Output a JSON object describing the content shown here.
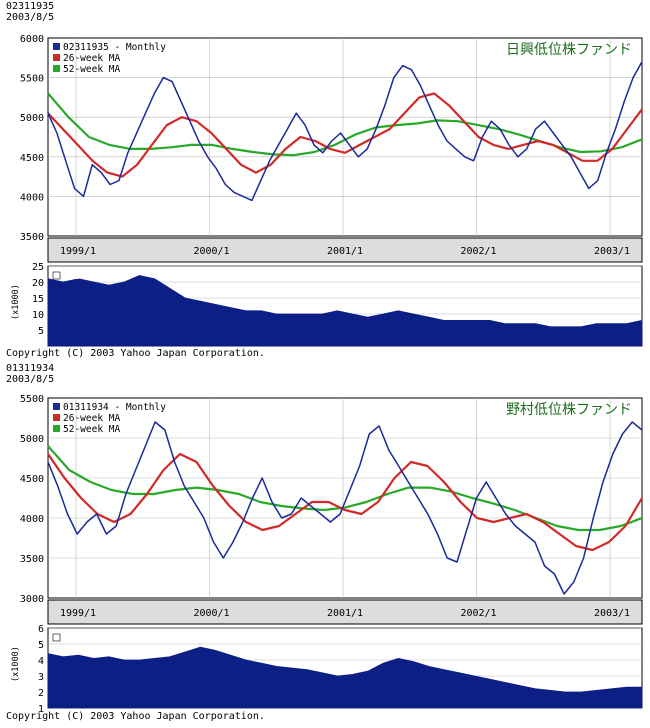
{
  "chart_data": [
    {
      "type": "line",
      "header": {
        "code": "02311935",
        "date": "2003/8/5"
      },
      "title": "日興低位株ファンド",
      "legend": [
        {
          "label": "02311935 - Monthly",
          "color": "#1a2a9a"
        },
        {
          "label": "26-week MA",
          "color": "#d12a2a"
        },
        {
          "label": "52-week MA",
          "color": "#2aa82a"
        }
      ],
      "y_ticks": [
        "6000",
        "5500",
        "5000",
        "4500",
        "4000",
        "3500"
      ],
      "ylim": [
        3500,
        6000
      ],
      "x_ticks": [
        "1999/1",
        "2000/1",
        "2001/1",
        "2002/1",
        "2003/1"
      ],
      "price": [
        5050,
        4800,
        4450,
        4100,
        4000,
        4400,
        4300,
        4150,
        4200,
        4550,
        4800,
        5050,
        5300,
        5500,
        5450,
        5200,
        4950,
        4700,
        4500,
        4350,
        4150,
        4050,
        4000,
        3950,
        4200,
        4450,
        4650,
        4850,
        5050,
        4900,
        4650,
        4550,
        4700,
        4800,
        4650,
        4500,
        4600,
        4850,
        5150,
        5500,
        5650,
        5600,
        5400,
        5150,
        4900,
        4700,
        4600,
        4500,
        4450,
        4750,
        4950,
        4850,
        4650,
        4500,
        4600,
        4850,
        4950,
        4800,
        4650,
        4500,
        4300,
        4100,
        4200,
        4550,
        4850,
        5200,
        5500,
        5700
      ],
      "ma26": [
        5050,
        4850,
        4650,
        4450,
        4300,
        4250,
        4400,
        4650,
        4900,
        5000,
        4950,
        4800,
        4600,
        4400,
        4300,
        4400,
        4600,
        4750,
        4700,
        4600,
        4550,
        4650,
        4750,
        4850,
        5050,
        5250,
        5300,
        5150,
        4950,
        4750,
        4650,
        4600,
        4650,
        4700,
        4650,
        4550,
        4450,
        4450,
        4600,
        4850,
        5100
      ],
      "ma52": [
        5300,
        5000,
        4750,
        4650,
        4600,
        4600,
        4620,
        4650,
        4650,
        4600,
        4560,
        4530,
        4520,
        4560,
        4650,
        4780,
        4870,
        4900,
        4920,
        4960,
        4950,
        4900,
        4850,
        4780,
        4700,
        4620,
        4560,
        4570,
        4620,
        4720
      ],
      "assets": {
        "label": "Assets",
        "unit": "(x1000)",
        "y_ticks": [
          "25",
          "20",
          "15",
          "10",
          "5"
        ],
        "ylim": [
          0,
          25
        ],
        "values": [
          21,
          20,
          21,
          20,
          19,
          20,
          22,
          21,
          18,
          15,
          14,
          13,
          12,
          11,
          11,
          10,
          10,
          10,
          10,
          11,
          10,
          9,
          10,
          11,
          10,
          9,
          8,
          8,
          8,
          8,
          7,
          7,
          7,
          6,
          6,
          6,
          7,
          7,
          7,
          8
        ]
      },
      "copyright": "Copyright (C) 2003 Yahoo Japan Corporation."
    },
    {
      "type": "line",
      "header": {
        "code": "01311934",
        "date": "2003/8/5"
      },
      "title": "野村低位株ファンド",
      "legend": [
        {
          "label": "01311934 - Monthly",
          "color": "#1a2a9a"
        },
        {
          "label": "26-week MA",
          "color": "#d12a2a"
        },
        {
          "label": "52-week MA",
          "color": "#2aa82a"
        }
      ],
      "y_ticks": [
        "5500",
        "5000",
        "4500",
        "4000",
        "3500",
        "3000"
      ],
      "ylim": [
        3000,
        5500
      ],
      "x_ticks": [
        "1999/1",
        "2000/1",
        "2001/1",
        "2002/1",
        "2003/1"
      ],
      "price": [
        4700,
        4400,
        4050,
        3800,
        3950,
        4050,
        3800,
        3900,
        4300,
        4600,
        4900,
        5200,
        5100,
        4700,
        4400,
        4200,
        4000,
        3700,
        3500,
        3700,
        3950,
        4250,
        4500,
        4200,
        4000,
        4050,
        4250,
        4150,
        4050,
        3950,
        4050,
        4350,
        4650,
        5050,
        5150,
        4850,
        4650,
        4450,
        4250,
        4050,
        3800,
        3500,
        3450,
        3850,
        4250,
        4450,
        4250,
        4050,
        3900,
        3800,
        3700,
        3400,
        3300,
        3050,
        3200,
        3500,
        4000,
        4450,
        4800,
        5050,
        5200,
        5100
      ],
      "ma26": [
        4800,
        4500,
        4250,
        4050,
        3950,
        4050,
        4300,
        4600,
        4800,
        4700,
        4400,
        4150,
        3950,
        3850,
        3900,
        4050,
        4200,
        4200,
        4100,
        4050,
        4200,
        4500,
        4700,
        4650,
        4450,
        4200,
        4000,
        3950,
        4000,
        4050,
        3950,
        3800,
        3650,
        3600,
        3700,
        3900,
        4250
      ],
      "ma52": [
        4900,
        4600,
        4450,
        4350,
        4300,
        4300,
        4350,
        4380,
        4350,
        4300,
        4200,
        4150,
        4120,
        4100,
        4130,
        4200,
        4300,
        4380,
        4380,
        4330,
        4250,
        4180,
        4100,
        4000,
        3900,
        3850,
        3850,
        3900,
        4000
      ],
      "assets": {
        "label": "Assets",
        "unit": "(x1000)",
        "y_ticks": [
          "6",
          "5",
          "4",
          "3",
          "2",
          "1"
        ],
        "ylim": [
          1,
          6
        ],
        "values": [
          4.4,
          4.2,
          4.3,
          4.1,
          4.2,
          4.0,
          4.0,
          4.1,
          4.2,
          4.5,
          4.8,
          4.6,
          4.3,
          4.0,
          3.8,
          3.6,
          3.5,
          3.4,
          3.2,
          3.0,
          3.1,
          3.3,
          3.8,
          4.1,
          3.9,
          3.6,
          3.4,
          3.2,
          3.0,
          2.8,
          2.6,
          2.4,
          2.2,
          2.1,
          2.0,
          2.0,
          2.1,
          2.2,
          2.3,
          2.3
        ]
      },
      "copyright": "Copyright (C) 2003 Yahoo Japan Corporation."
    }
  ]
}
